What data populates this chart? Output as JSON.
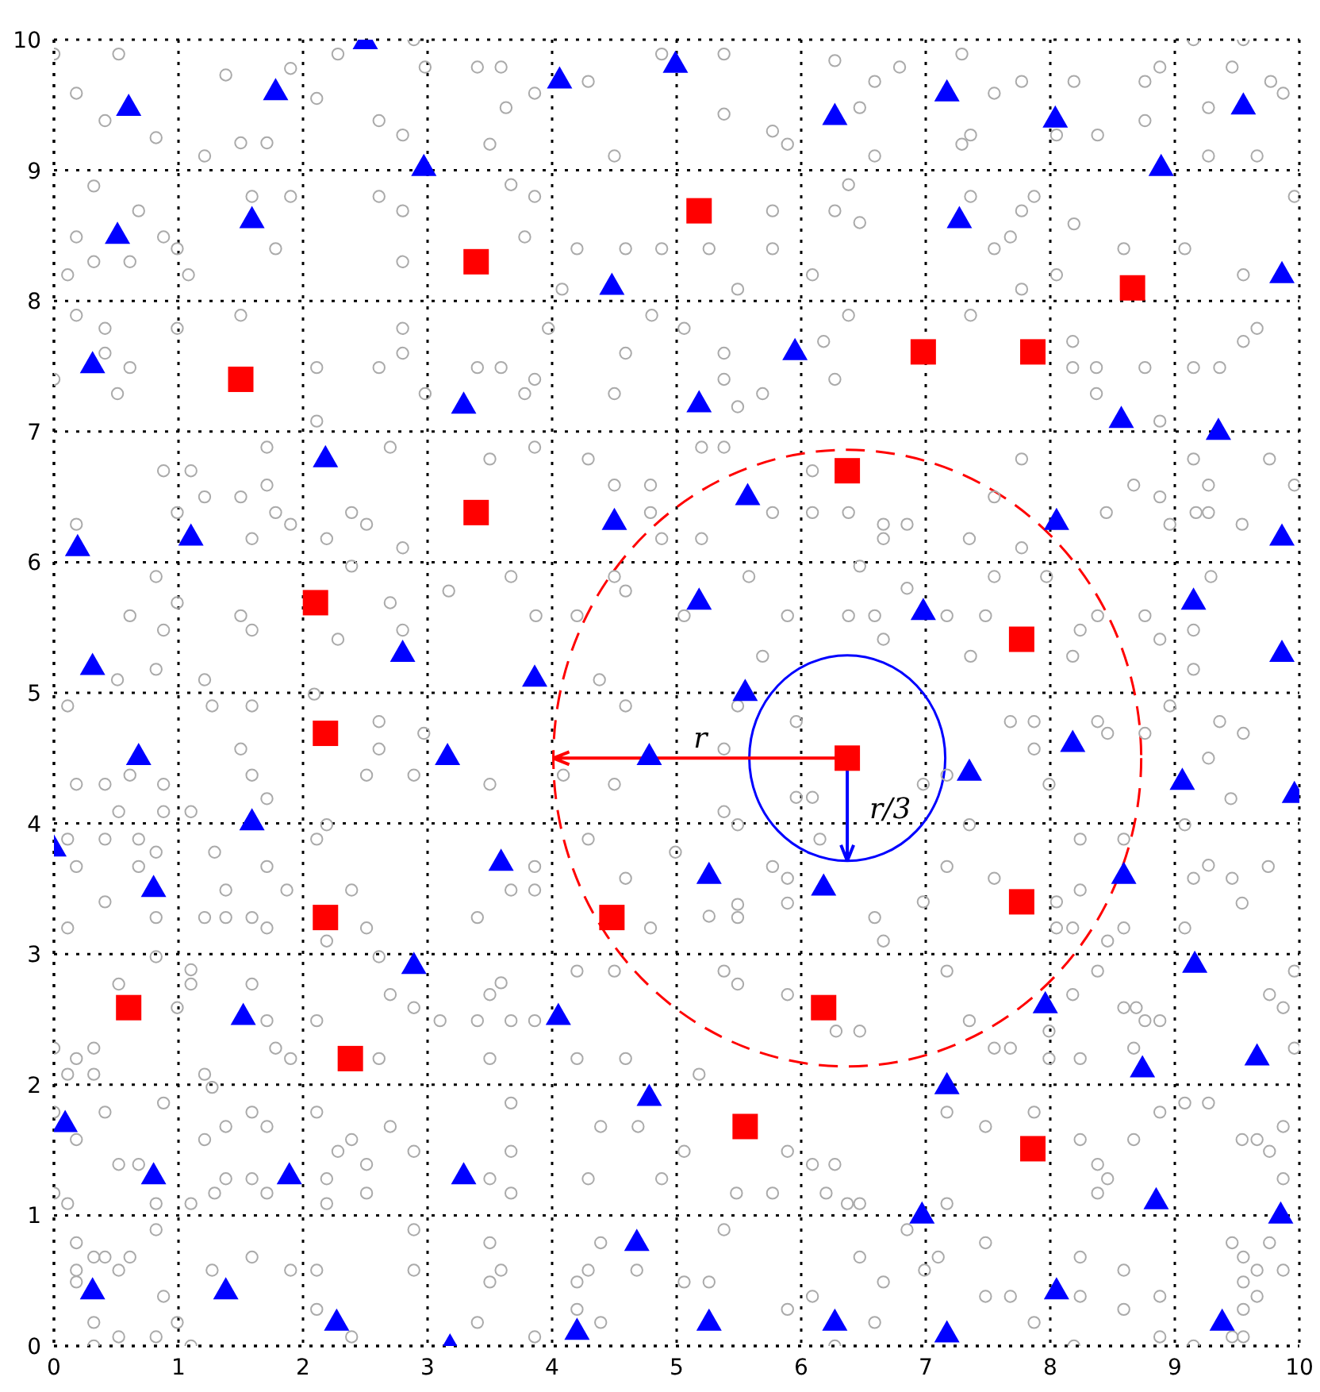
{
  "chart_data": {
    "type": "scatter",
    "xlim": [
      0,
      10
    ],
    "ylim": [
      0,
      10
    ],
    "xticks": [
      0,
      1,
      2,
      3,
      4,
      5,
      6,
      7,
      8,
      9,
      10
    ],
    "yticks": [
      0,
      1,
      2,
      3,
      4,
      5,
      6,
      7,
      8,
      9,
      10
    ],
    "grid": true,
    "series": [
      {
        "type": "scatter",
        "marker": "circle",
        "color": "#aaaaaa",
        "x": [
          0,
          0.52,
          0.18,
          0.41,
          0.82,
          1.38,
          1.9,
          1.5,
          1.71,
          1.21,
          2.11,
          2.28,
          2.61,
          2.8,
          2.89,
          2.98,
          0.32,
          0.68,
          0.18,
          0.32,
          0.11,
          0.88,
          0.61,
          0.99,
          1.08,
          1.59,
          1.78,
          1.9,
          2.61,
          2.8,
          2.8,
          0.18,
          0.41,
          0.41,
          0.61,
          0,
          0.51,
          0.99,
          1.5,
          2.11,
          2.61,
          2.8,
          2.8,
          2.98,
          2.11,
          0.88,
          1.1,
          1.21,
          1.5,
          1.71,
          1.78,
          1.9,
          1.59,
          0.99,
          1.71,
          2.39,
          2.51,
          2.19,
          2.7,
          2.8,
          0.18,
          0.82,
          0.61,
          0.88,
          0.99,
          1.5,
          1.59,
          0.82,
          0.51,
          1.21,
          2.28,
          2.7,
          2.8,
          3.17,
          2.39
        ],
        "values": [
          9.89,
          9.89,
          9.59,
          9.38,
          9.25,
          9.73,
          9.78,
          9.21,
          9.21,
          9.11,
          9.55,
          9.89,
          9.38,
          9.27,
          10,
          9.79,
          8.88,
          8.69,
          8.49,
          8.3,
          8.2,
          8.49,
          8.3,
          8.4,
          8.2,
          8.8,
          8.4,
          8.8,
          8.8,
          8.69,
          8.3,
          7.89,
          7.79,
          7.6,
          7.49,
          7.4,
          7.29,
          7.79,
          7.89,
          7.49,
          7.49,
          7.6,
          7.79,
          7.29,
          7.08,
          6.7,
          6.7,
          6.5,
          6.5,
          6.59,
          6.38,
          6.29,
          6.18,
          6.38,
          6.88,
          6.38,
          6.29,
          6.18,
          6.88,
          6.11,
          6.29,
          5.89,
          5.59,
          5.48,
          5.69,
          5.59,
          5.48,
          5.18,
          5.1,
          5.1,
          5.41,
          5.69,
          5.48,
          5.78,
          5.97
        ]
      },
      {
        "type": "scatter",
        "marker": "circle",
        "color": "#aaaaaa",
        "x": [
          3.4,
          3.59,
          3.86,
          3.63,
          3.5,
          4.29,
          4.5,
          4.88,
          5.38,
          5.38,
          5.77,
          5.89,
          6.27,
          6.59,
          6.47,
          6.79,
          6.59,
          3.67,
          3.86,
          3.78,
          4.2,
          4.59,
          4.88,
          5.26,
          5.49,
          5.77,
          5.77,
          6.09,
          6.27,
          6.47,
          6.38,
          4.08,
          3.4,
          3.59,
          3.86,
          3.78,
          3.97,
          4.8,
          4.5,
          4.59,
          5.06,
          5.38,
          5.38,
          5.69,
          5.49,
          6.18,
          6.27,
          6.38,
          3.5,
          3.86,
          4.29,
          4.5,
          4.79,
          4.79,
          4.88,
          5.2,
          5.38,
          5.2,
          5.77,
          6.09,
          6.38,
          6.66,
          6.66,
          6.09,
          3.67,
          3.87,
          4.2,
          4.38,
          4.5,
          4.59,
          5.06,
          5.58,
          5.89,
          6.47,
          6.38,
          6.59,
          6.66,
          5.69
        ],
        "values": [
          9.79,
          9.79,
          9.59,
          9.48,
          9.2,
          9.68,
          9.11,
          9.89,
          9.89,
          9.43,
          9.3,
          9.2,
          9.84,
          9.68,
          9.48,
          9.79,
          9.11,
          8.89,
          8.8,
          8.49,
          8.4,
          8.4,
          8.4,
          8.4,
          8.09,
          8.69,
          8.4,
          8.2,
          8.69,
          8.6,
          8.89,
          8.09,
          7.49,
          7.49,
          7.4,
          7.29,
          7.79,
          7.89,
          7.29,
          7.6,
          7.79,
          7.6,
          7.4,
          7.29,
          7.19,
          7.69,
          7.4,
          7.89,
          6.79,
          6.88,
          6.79,
          6.59,
          6.59,
          6.38,
          6.18,
          6.88,
          6.88,
          6.18,
          6.38,
          6.38,
          6.38,
          6.29,
          6.18,
          6.7,
          5.89,
          5.59,
          5.59,
          5.1,
          5.89,
          5.78,
          5.59,
          5.89,
          5.59,
          5.97,
          5.59,
          5.59,
          5.41,
          5.28
        ]
      },
      {
        "type": "scatter",
        "marker": "circle",
        "color": "#aaaaaa",
        "x": [
          7.29,
          7.77,
          7.55,
          7.29,
          7.36,
          8.19,
          8.05,
          8.38,
          8.76,
          8.88,
          8.76,
          9.46,
          9.27,
          9.77,
          9.87,
          9.27,
          9.66,
          9.55,
          9.15,
          7.36,
          7.77,
          7.55,
          7.68,
          7.87,
          8.19,
          8.59,
          9.08,
          9.55,
          9.96,
          7.77,
          8.05,
          7.36,
          8.18,
          8.18,
          8.37,
          8.76,
          8.37,
          9.15,
          9.36,
          9.55,
          9.66,
          8.88,
          7.77,
          7.55,
          7.35,
          7.77,
          8.45,
          8.67,
          8.88,
          8.96,
          9.15,
          9.27,
          9.17,
          9.27,
          9.54,
          9.76,
          9.96,
          6.85,
          6.85,
          7.17,
          7.48,
          7.55,
          7.97,
          8.24,
          8.38,
          8.76,
          8.88,
          9.29,
          9.15,
          9.15,
          7.36,
          8.18
        ],
        "values": [
          9.89,
          9.68,
          9.59,
          9.2,
          9.27,
          9.68,
          9.27,
          9.27,
          9.68,
          9.79,
          9.38,
          9.79,
          9.48,
          9.68,
          9.59,
          9.11,
          9.11,
          10,
          10,
          8.8,
          8.69,
          8.4,
          8.49,
          8.8,
          8.59,
          8.4,
          8.4,
          8.2,
          8.8,
          8.09,
          8.2,
          7.89,
          7.69,
          7.49,
          7.49,
          7.49,
          7.29,
          7.49,
          7.49,
          7.69,
          7.79,
          7.08,
          6.79,
          6.5,
          6.18,
          6.11,
          6.38,
          6.59,
          6.5,
          6.29,
          6.79,
          6.59,
          6.38,
          6.38,
          6.29,
          6.79,
          6.59,
          6.29,
          5.8,
          5.59,
          5.59,
          5.89,
          5.89,
          5.48,
          5.59,
          5.59,
          5.41,
          5.89,
          5.48,
          5.18,
          5.28,
          5.28
        ]
      },
      {
        "type": "scatter",
        "marker": "circle",
        "color": "#aaaaaa",
        "x": [
          0.11,
          0.18,
          0.41,
          0.61,
          0.88,
          0.52,
          0.88,
          1.27,
          1.59,
          1.5,
          1.59,
          1.71,
          1.1,
          2.09,
          2.61,
          2.61,
          2.51,
          2.89,
          2.97,
          2.19,
          0.11,
          0.41,
          0.68,
          0.82,
          0.18,
          0.68,
          0.41,
          0.82,
          0.11,
          1.29,
          1.71,
          1.38,
          1.87,
          1.21,
          1.38,
          1.59,
          1.71,
          2.11,
          2.39,
          2.51,
          2.19,
          0.52,
          0.82,
          1.1,
          1.1,
          1.59,
          1.71,
          0.99,
          0,
          0.32,
          0.18,
          0.32,
          0.11,
          1.78,
          1.9,
          1.21,
          2.11,
          2.7,
          2.61,
          2.61,
          2.89,
          3.1,
          0,
          0.41,
          0.18,
          0.88,
          0.52,
          0.68,
          0,
          0.11,
          0.82,
          1.27,
          1.59,
          1.71,
          1.21,
          1.38,
          1.38,
          1.59,
          1.71,
          1.29,
          1.1,
          2.11,
          2.28,
          2.39,
          2.51,
          2.19,
          2.19,
          2.51,
          2.89,
          2.7,
          0.18,
          0.32,
          0.41,
          0.61,
          0.18,
          0.52,
          0.18,
          0.82,
          0.32,
          0.32,
          0.52,
          0.88,
          0.82,
          1.59,
          1.27,
          1.9,
          1.1,
          2.11,
          2.11,
          2.39,
          2.89,
          2.89,
          0.99
        ],
        "values": [
          4.9,
          4.3,
          4.3,
          4.37,
          4.3,
          4.09,
          4.09,
          4.9,
          4.9,
          4.57,
          4.37,
          4.19,
          4.09,
          4.99,
          4.78,
          4.57,
          4.37,
          4.37,
          4.69,
          3.99,
          3.88,
          3.88,
          3.88,
          3.78,
          3.67,
          3.67,
          3.4,
          3.28,
          3.2,
          3.78,
          3.67,
          3.49,
          3.49,
          3.28,
          3.28,
          3.28,
          3.2,
          3.88,
          3.49,
          3.2,
          3.1,
          2.77,
          2.98,
          2.88,
          2.77,
          2.77,
          2.49,
          2.59,
          2.28,
          2.28,
          2.2,
          2.08,
          2.08,
          2.28,
          2.2,
          2.08,
          2.49,
          2.69,
          2.98,
          2.2,
          2.59,
          2.49,
          1.79,
          1.79,
          1.58,
          1.86,
          1.39,
          1.39,
          1.17,
          1.09,
          1.09,
          1.98,
          1.79,
          1.68,
          1.58,
          1.68,
          1.28,
          1.28,
          1.17,
          1.17,
          1.09,
          1.79,
          1.49,
          1.58,
          1.39,
          1.28,
          1.09,
          1.17,
          1.49,
          1.68,
          0.79,
          0.68,
          0.68,
          0.68,
          0.58,
          0.58,
          0.49,
          0.89,
          0.18,
          0,
          0.07,
          0.38,
          0.07,
          0.68,
          0.58,
          0.58,
          0,
          0.58,
          0.28,
          0.07,
          0.89,
          0.58,
          0.18
        ]
      },
      {
        "type": "scatter",
        "marker": "circle",
        "color": "#aaaaaa",
        "x": [
          4.09,
          4.5,
          5.38,
          5.38,
          5.49,
          5.96,
          5.96,
          6.09,
          5.49,
          4.59,
          3.5,
          4.29,
          4.59,
          3.86,
          3.86,
          3.67,
          3.4,
          4.79,
          4.99,
          5.49,
          5.49,
          5.26,
          5.77,
          5.89,
          5.89,
          6.59,
          6.66,
          6.15,
          3.5,
          3.59,
          3.4,
          3.67,
          3.86,
          4.2,
          4.5,
          4.2,
          4.59,
          5.38,
          5.49,
          5.89,
          6.47,
          6.28,
          5.18,
          3.5,
          3.67,
          4.39,
          4.69,
          3.67,
          3.5,
          3.67,
          4.29,
          4.88,
          5.06,
          5.48,
          5.77,
          5.89,
          6.09,
          6.27,
          6.2,
          6.37,
          6.47,
          5.38,
          3.5,
          3.59,
          3.5,
          3.4,
          3.86,
          4.39,
          4.29,
          4.2,
          4.2,
          4.39,
          4.68,
          5.06,
          5.26,
          5.89,
          6.09,
          6.47,
          6.66,
          6.59,
          6.27
        ],
        "values": [
          4.37,
          4.3,
          4.57,
          4.09,
          3.99,
          4.78,
          4.2,
          4.2,
          4.9,
          4.9,
          4.3,
          3.88,
          3.58,
          3.67,
          3.49,
          3.49,
          3.28,
          3.2,
          3.78,
          3.38,
          3.28,
          3.29,
          3.67,
          3.58,
          3.39,
          3.28,
          3.1,
          3.88,
          2.69,
          2.78,
          2.49,
          2.49,
          2.49,
          2.87,
          2.87,
          2.2,
          2.2,
          2.87,
          2.77,
          2.69,
          2.41,
          2.41,
          2.08,
          2.2,
          1.86,
          1.68,
          1.68,
          1.49,
          1.28,
          1.17,
          1.28,
          1.28,
          1.49,
          1.17,
          1.17,
          1.49,
          1.39,
          1.39,
          1.17,
          1.09,
          1.09,
          0.89,
          0.79,
          0.58,
          0.49,
          0.18,
          0.07,
          0.79,
          0.58,
          0.49,
          0.28,
          0.18,
          0.58,
          0.49,
          0.49,
          0.28,
          0.38,
          0.68,
          0.49,
          0.18,
          0
        ]
      },
      {
        "type": "scatter",
        "marker": "circle",
        "color": "#aaaaaa",
        "x": [
          7.68,
          7.87,
          7.87,
          7.17,
          6.98,
          7.99,
          8.38,
          8.46,
          8.76,
          8.96,
          9.36,
          9.55,
          9.27,
          9.45,
          7.35,
          7.17,
          7.55,
          6.98,
          8.05,
          8.24,
          8.59,
          8.24,
          8.05,
          8.18,
          8.59,
          8.46,
          9.08,
          9.15,
          9.27,
          9.46,
          9.54,
          9.08,
          9.75,
          7.35,
          7.55,
          7.68,
          7.17,
          7.99,
          8.18,
          7.99,
          8.24,
          8.59,
          8.69,
          8.76,
          8.88,
          8.67,
          8.38,
          9.76,
          9.87,
          9.96,
          9.96,
          7.17,
          7.48,
          7.87,
          8.24,
          8.38,
          8.46,
          8.38,
          8.67,
          8.88,
          9.08,
          9.27,
          9.54,
          9.66,
          9.76,
          9.87,
          9.87,
          7.17,
          6.85,
          7.1,
          6.99,
          7.48,
          7.48,
          7.68,
          7.87,
          8.24,
          8.24,
          8.59,
          8.59,
          8.88,
          8.88,
          8.19,
          9.15,
          9.46,
          9.55,
          9.66,
          9.55,
          9.66,
          9.55,
          9.87,
          9.46,
          9.55,
          9.76
        ],
        "values": [
          4.78,
          4.78,
          4.57,
          4.37,
          4.3,
          4.3,
          4.78,
          4.69,
          4.69,
          4.9,
          4.78,
          4.69,
          4.5,
          4.19,
          3.99,
          3.67,
          3.58,
          3.4,
          3.4,
          3.88,
          3.88,
          3.49,
          3.2,
          3.2,
          3.2,
          3.1,
          3.2,
          3.58,
          3.68,
          3.58,
          3.39,
          3.99,
          3.67,
          2.49,
          2.28,
          2.28,
          2.87,
          2.41,
          2.69,
          2.2,
          2.2,
          2.59,
          2.59,
          2.49,
          2.49,
          2.28,
          2.87,
          2.69,
          2.59,
          2.87,
          2.28,
          1.79,
          1.68,
          1.79,
          1.58,
          1.39,
          1.28,
          1.17,
          1.58,
          1.79,
          1.86,
          1.86,
          1.58,
          1.58,
          1.49,
          1.68,
          1.28,
          1.09,
          0.89,
          0.68,
          0.58,
          0.79,
          0.38,
          0.38,
          0.18,
          0.68,
          0.38,
          0.58,
          0.28,
          0.38,
          0.07,
          0,
          0,
          0.79,
          0.68,
          0.58,
          0.49,
          0.38,
          0.28,
          0.58,
          0.07,
          0.07,
          0.79
        ]
      },
      {
        "marker": "triangle",
        "color": "#0000ff",
        "x": [
          2.5,
          0.6,
          1.78,
          4.06,
          4.99,
          2.97,
          6.27,
          7.17,
          8.04,
          8.89,
          9.55,
          0.51,
          1.59,
          7.27,
          4.48,
          9.86,
          0.31,
          5.95,
          5.18,
          3.29,
          8.57,
          9.35,
          2.18,
          5.57,
          1.1,
          0.19,
          4.5,
          8.05,
          9.86,
          2.8,
          5.18,
          6.98,
          9.15,
          3.86,
          5.55,
          0.31,
          9.86,
          0.68,
          3.16,
          4.78,
          7.35,
          8.18,
          9.06,
          9.96,
          1.59,
          0,
          0.8,
          3.59,
          5.26,
          6.18,
          8.59,
          2.89,
          1.52,
          4.05,
          7.96,
          9.16,
          9.66,
          8.74,
          0.09,
          4.78,
          7.17,
          0.8,
          1.89,
          3.29,
          4.68,
          6.97,
          8.85,
          9.85,
          0.31,
          1.38,
          2.27,
          4.2,
          5.26,
          6.27,
          7.17,
          8.05,
          9.38,
          3.18
        ],
        "values": [
          10,
          9.49,
          9.61,
          9.7,
          9.82,
          9.03,
          9.42,
          9.6,
          9.4,
          9.03,
          9.5,
          8.51,
          8.63,
          8.63,
          8.12,
          8.21,
          7.52,
          7.62,
          7.22,
          7.21,
          7.1,
          7.01,
          6.8,
          6.51,
          6.2,
          6.12,
          6.32,
          6.32,
          6.2,
          5.31,
          5.71,
          5.63,
          5.71,
          5.12,
          5.01,
          5.21,
          5.31,
          4.52,
          4.52,
          4.52,
          4.4,
          4.62,
          4.33,
          4.23,
          4.02,
          3.82,
          3.51,
          3.71,
          3.61,
          3.52,
          3.61,
          2.92,
          2.53,
          2.53,
          2.62,
          2.93,
          2.22,
          2.13,
          1.71,
          1.91,
          2,
          1.31,
          1.31,
          1.31,
          0.8,
          1.01,
          1.12,
          1.01,
          0.43,
          0.43,
          0.19,
          0.12,
          0.19,
          0.19,
          0.1,
          0.43,
          0.19,
          0
        ]
      },
      {
        "marker": "square",
        "color": "#ff0000",
        "x": [
          5.18,
          3.39,
          8.66,
          6.98,
          7.86,
          1.5,
          6.37,
          3.39,
          2.1,
          7.77,
          2.18,
          6.37,
          2.18,
          4.48,
          7.77,
          0.6,
          6.18,
          2.38,
          5.55,
          7.86
        ],
        "values": [
          8.69,
          8.3,
          8.1,
          7.61,
          7.61,
          7.4,
          6.7,
          6.38,
          5.69,
          5.41,
          4.69,
          4.5,
          3.28,
          3.28,
          3.4,
          2.59,
          2.59,
          2.2,
          1.68,
          1.51
        ]
      }
    ],
    "annotations": [
      "r",
      "r/3"
    ]
  }
}
